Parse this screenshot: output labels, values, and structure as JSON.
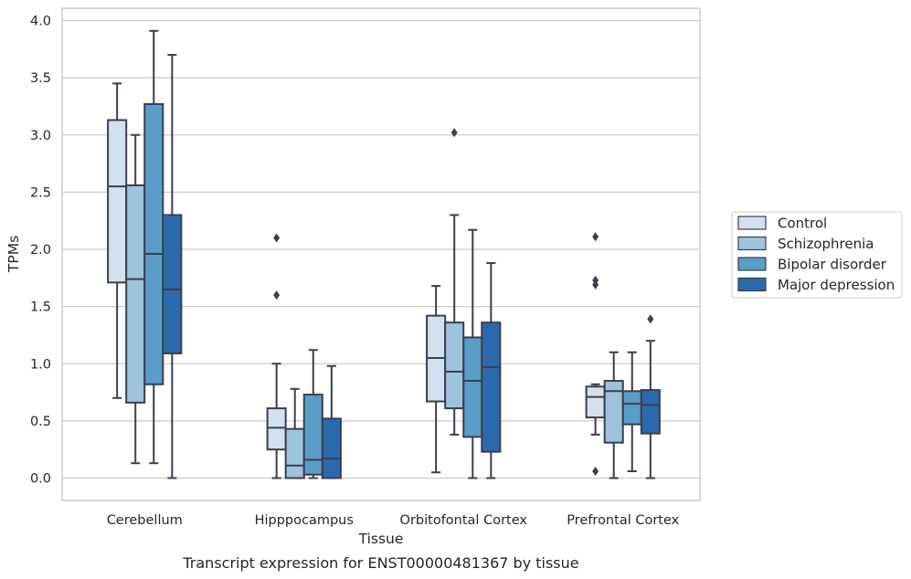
{
  "chart_data": {
    "type": "box",
    "title": "",
    "caption": "Transcript expression for ENST00000481367 by tissue",
    "xlabel": "Tissue",
    "ylabel": "TPMs",
    "ylim": [
      -0.19,
      4.1
    ],
    "yticks": [
      "0.0",
      "0.5",
      "1.0",
      "1.5",
      "2.0",
      "2.5",
      "3.0",
      "3.5",
      "4.0"
    ],
    "grid": "horizontal",
    "legend_position": "right",
    "categories": [
      "Cerebellum",
      "Hipppocampus",
      "Orbitofontal Cortex",
      "Prefrontal Cortex"
    ],
    "series": [
      {
        "name": "Control",
        "color": "#d2e1ef",
        "boxes": [
          {
            "whislo": 0.7,
            "q1": 1.71,
            "med": 2.55,
            "q3": 3.13,
            "whishi": 3.45,
            "fliers": []
          },
          {
            "whislo": 0.0,
            "q1": 0.25,
            "med": 0.44,
            "q3": 0.61,
            "whishi": 1.0,
            "fliers": [
              1.6,
              2.1
            ]
          },
          {
            "whislo": 0.05,
            "q1": 0.67,
            "med": 1.05,
            "q3": 1.42,
            "whishi": 1.68,
            "fliers": []
          },
          {
            "whislo": 0.38,
            "q1": 0.53,
            "med": 0.71,
            "q3": 0.8,
            "whishi": 0.82,
            "fliers": [
              0.06,
              1.69,
              1.73,
              2.11
            ]
          }
        ]
      },
      {
        "name": "Schizophrenia",
        "color": "#9cc4dd",
        "boxes": [
          {
            "whislo": 0.13,
            "q1": 0.66,
            "med": 1.74,
            "q3": 2.56,
            "whishi": 3.0,
            "fliers": []
          },
          {
            "whislo": 0.0,
            "q1": 0.0,
            "med": 0.11,
            "q3": 0.43,
            "whishi": 0.78,
            "fliers": []
          },
          {
            "whislo": 0.38,
            "q1": 0.61,
            "med": 0.93,
            "q3": 1.36,
            "whishi": 2.3,
            "fliers": [
              3.02
            ]
          },
          {
            "whislo": 0.0,
            "q1": 0.31,
            "med": 0.76,
            "q3": 0.85,
            "whishi": 1.1,
            "fliers": []
          }
        ]
      },
      {
        "name": "Bipolar disorder",
        "color": "#5a9dc9",
        "boxes": [
          {
            "whislo": 0.13,
            "q1": 0.82,
            "med": 1.96,
            "q3": 3.27,
            "whishi": 3.91,
            "fliers": []
          },
          {
            "whislo": 0.0,
            "q1": 0.03,
            "med": 0.16,
            "q3": 0.73,
            "whishi": 1.12,
            "fliers": []
          },
          {
            "whislo": 0.0,
            "q1": 0.36,
            "med": 0.85,
            "q3": 1.23,
            "whishi": 2.17,
            "fliers": []
          },
          {
            "whislo": 0.06,
            "q1": 0.47,
            "med": 0.65,
            "q3": 0.76,
            "whishi": 1.1,
            "fliers": []
          }
        ]
      },
      {
        "name": "Major depression",
        "color": "#2a6aac",
        "boxes": [
          {
            "whislo": 0.0,
            "q1": 1.09,
            "med": 1.65,
            "q3": 2.3,
            "whishi": 3.7,
            "fliers": []
          },
          {
            "whislo": 0.0,
            "q1": 0.0,
            "med": 0.17,
            "q3": 0.52,
            "whishi": 0.98,
            "fliers": []
          },
          {
            "whislo": 0.0,
            "q1": 0.23,
            "med": 0.97,
            "q3": 1.36,
            "whishi": 1.88,
            "fliers": []
          },
          {
            "whislo": 0.0,
            "q1": 0.39,
            "med": 0.64,
            "q3": 0.77,
            "whishi": 1.2,
            "fliers": [
              1.39
            ]
          }
        ]
      }
    ]
  }
}
